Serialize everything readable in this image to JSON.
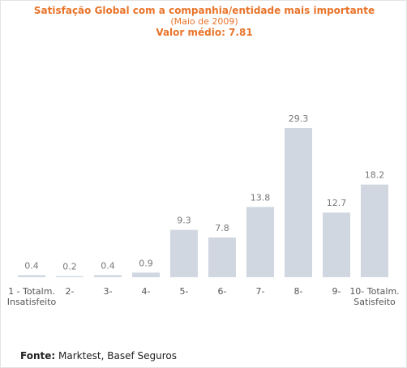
{
  "header": {
    "title": "Satisfação Global com a companhia/entidade mais importante",
    "subtitle": "(Maio de 2009)",
    "average": "Valor médio: 7.81"
  },
  "source": {
    "label": "Fonte:",
    "text": "Marktest, Basef Seguros"
  },
  "colors": {
    "bar": "#d0d7e0",
    "title": "#e8742a"
  },
  "chart_data": {
    "type": "bar",
    "title": "Satisfação Global com a companhia/entidade mais importante",
    "subtitle": "(Maio de 2009)",
    "categories": [
      "1 - Totalm.\nInsatisfeito",
      "2-",
      "3-",
      "4-",
      "5-",
      "6-",
      "7-",
      "8-",
      "9-",
      "10- Totalm.\nSatisfeito"
    ],
    "values": [
      0.4,
      0.2,
      0.4,
      0.9,
      9.3,
      7.8,
      13.8,
      29.3,
      12.7,
      18.2
    ],
    "value_labels": [
      "0.4",
      "0.2",
      "0.4",
      "0.9",
      "9.3",
      "7.8",
      "13.8",
      "29.3",
      "12.7",
      "18.2"
    ],
    "ylim": [
      0,
      29.3
    ],
    "grid": false,
    "legend": "none"
  }
}
